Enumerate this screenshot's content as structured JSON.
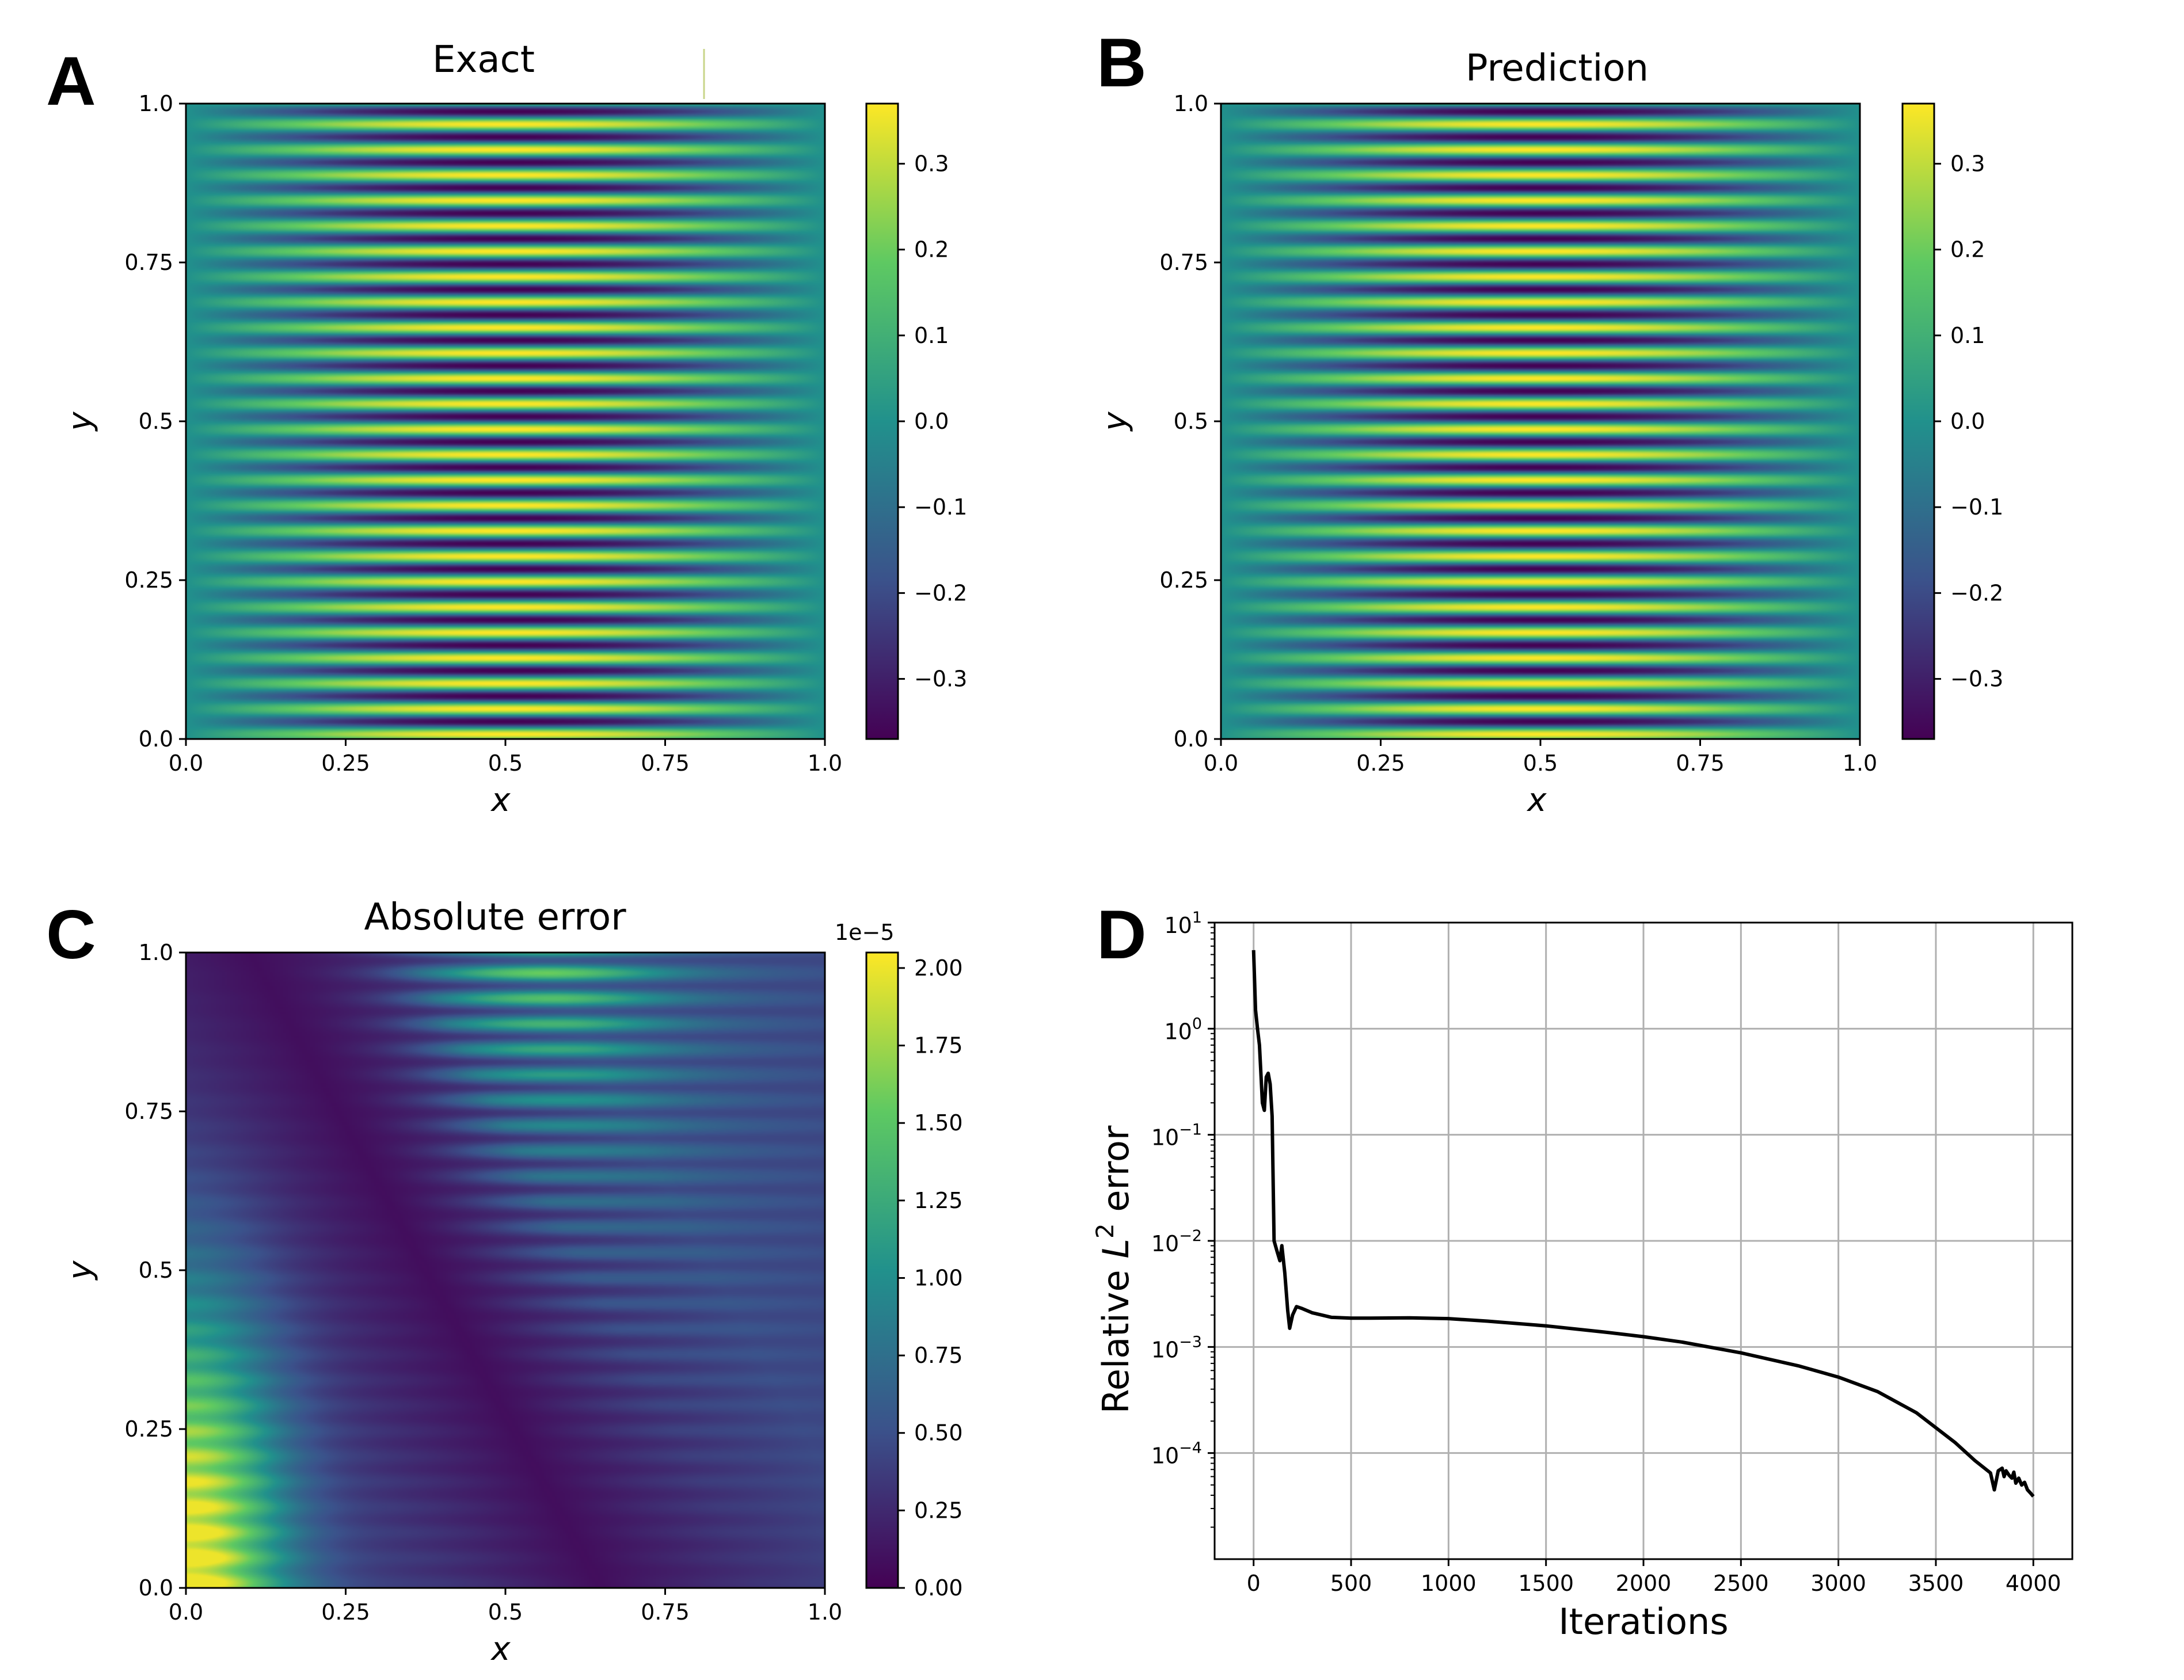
{
  "panels": {
    "A": {
      "letter": "A",
      "title": "Exact"
    },
    "B": {
      "letter": "B",
      "title": "Prediction"
    },
    "C": {
      "letter": "C",
      "title": "Absolute error"
    },
    "D": {
      "letter": "D"
    }
  },
  "colormap": {
    "name": "viridis",
    "stops": [
      "#440154",
      "#3b528b",
      "#21918c",
      "#5ec962",
      "#fde725"
    ]
  },
  "chart_data": [
    {
      "type": "heatmap",
      "panel": "A",
      "title": "Exact",
      "xlabel": "x",
      "ylabel": "y",
      "xlim": [
        0.0,
        1.0
      ],
      "ylim": [
        0.0,
        1.0
      ],
      "x_ticks": [
        "0.0",
        "0.25",
        "0.5",
        "0.75",
        "1.0"
      ],
      "y_ticks": [
        "0.0",
        "0.25",
        "0.5",
        "0.75",
        "1.0"
      ],
      "field": {
        "pattern": "horizontal stripes, amplitude peaks at x = 0.5",
        "stripe_count": 50,
        "amplitude": 0.37
      },
      "colorbar": {
        "range": [
          -0.37,
          0.37
        ],
        "ticks": [
          -0.3,
          -0.2,
          -0.1,
          0.0,
          0.1,
          0.2,
          0.3
        ],
        "tick_labels": [
          "−0.3",
          "−0.2",
          "−0.1",
          "0.0",
          "0.1",
          "0.2",
          "0.3"
        ]
      }
    },
    {
      "type": "heatmap",
      "panel": "B",
      "title": "Prediction",
      "xlabel": "x",
      "ylabel": "y",
      "xlim": [
        0.0,
        1.0
      ],
      "ylim": [
        0.0,
        1.0
      ],
      "x_ticks": [
        "0.0",
        "0.25",
        "0.5",
        "0.75",
        "1.0"
      ],
      "y_ticks": [
        "0.0",
        "0.25",
        "0.5",
        "0.75",
        "1.0"
      ],
      "field": {
        "pattern": "horizontal stripes, amplitude peaks at x = 0.5",
        "stripe_count": 50,
        "amplitude": 0.37
      },
      "colorbar": {
        "range": [
          -0.37,
          0.37
        ],
        "ticks": [
          -0.3,
          -0.2,
          -0.1,
          0.0,
          0.1,
          0.2,
          0.3
        ],
        "tick_labels": [
          "−0.3",
          "−0.2",
          "−0.1",
          "0.0",
          "0.1",
          "0.2",
          "0.3"
        ]
      }
    },
    {
      "type": "heatmap",
      "panel": "C",
      "title": "Absolute error",
      "xlabel": "x",
      "ylabel": "y",
      "xlim": [
        0.0,
        1.0
      ],
      "ylim": [
        0.0,
        1.0
      ],
      "x_ticks": [
        "0.0",
        "0.25",
        "0.5",
        "0.75",
        "1.0"
      ],
      "y_ticks": [
        "0.0",
        "0.25",
        "0.5",
        "0.75",
        "1.0"
      ],
      "field": {
        "pattern": "striped error, low-error diagonal band from (0.1, 1.0) to (0.65, 0.0), maximum at (0, 0)",
        "max_value": 2e-05
      },
      "colorbar": {
        "range": [
          0.0,
          2.05
        ],
        "multiplier": "1e−5",
        "ticks": [
          0.0,
          0.25,
          0.5,
          0.75,
          1.0,
          1.25,
          1.5,
          1.75,
          2.0
        ],
        "tick_labels": [
          "0.00",
          "0.25",
          "0.50",
          "0.75",
          "1.00",
          "1.25",
          "1.50",
          "1.75",
          "2.00"
        ]
      }
    },
    {
      "type": "line",
      "panel": "D",
      "xlabel": "Iterations",
      "ylabel": "Relative L² error",
      "ylabel_parts": {
        "prefix": "Relative ",
        "var": "L",
        "sup": "2",
        "suffix": " error"
      },
      "y_scale": "log",
      "xlim": [
        -200,
        4200
      ],
      "ylim_exp": [
        -5,
        1
      ],
      "x_ticks": [
        0,
        500,
        1000,
        1500,
        2000,
        2500,
        3000,
        3500,
        4000
      ],
      "x_tick_labels": [
        "0",
        "500",
        "1000",
        "1500",
        "2000",
        "2500",
        "3000",
        "3500",
        "4000"
      ],
      "y_tick_exps": [
        -4,
        -3,
        -2,
        -1,
        0,
        1
      ],
      "grid": true,
      "series": [
        {
          "color": "#000000",
          "x": [
            0,
            10,
            20,
            30,
            45,
            55,
            65,
            75,
            85,
            95,
            105,
            120,
            135,
            145,
            160,
            175,
            185,
            200,
            220,
            250,
            300,
            400,
            500,
            600,
            800,
            1000,
            1200,
            1500,
            1800,
            2000,
            2200,
            2500,
            2800,
            3000,
            3200,
            3400,
            3600,
            3700,
            3780,
            3800,
            3820,
            3840,
            3850,
            3860,
            3875,
            3890,
            3900,
            3910,
            3925,
            3940,
            3955,
            3970,
            3985,
            4000
          ],
          "y": [
            5.5,
            1.5,
            1.0,
            0.7,
            0.2,
            0.17,
            0.35,
            0.38,
            0.3,
            0.15,
            0.01,
            0.008,
            0.0065,
            0.009,
            0.005,
            0.0022,
            0.0015,
            0.002,
            0.0024,
            0.0023,
            0.0021,
            0.0019,
            0.00187,
            0.00187,
            0.00188,
            0.00185,
            0.00175,
            0.00158,
            0.00138,
            0.00125,
            0.00111,
            0.00088,
            0.00066,
            0.00052,
            0.00038,
            0.00024,
            0.000125,
            8.5e-05,
            6.5e-05,
            4.5e-05,
            6.8e-05,
            7.2e-05,
            6e-05,
            6.8e-05,
            6.2e-05,
            5.8e-05,
            6.6e-05,
            5.2e-05,
            5.8e-05,
            5e-05,
            5.3e-05,
            4.5e-05,
            4.2e-05,
            3.9e-05
          ]
        }
      ]
    }
  ]
}
